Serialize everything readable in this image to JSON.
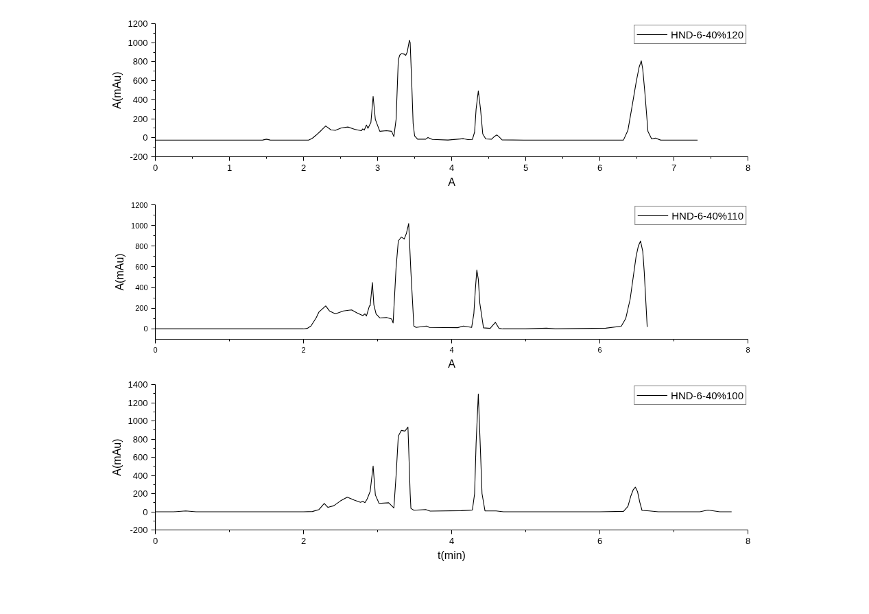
{
  "chart_data": [
    {
      "type": "line",
      "xlabel": "A",
      "ylabel": "A(mAu)",
      "xlim": [
        0,
        8
      ],
      "ylim": [
        -200,
        1200
      ],
      "xticks": [
        0,
        1,
        2,
        3,
        4,
        5,
        6,
        7,
        8
      ],
      "yticks": [
        -200,
        0,
        200,
        400,
        600,
        800,
        1000,
        1200
      ],
      "legend": "top right",
      "series": [
        {
          "name": "HND-6-40%120",
          "color": "#000000",
          "x": [
            0,
            0.5,
            1.0,
            1.45,
            1.5,
            1.55,
            2.0,
            2.07,
            2.12,
            2.17,
            2.24,
            2.3,
            2.37,
            2.43,
            2.51,
            2.6,
            2.69,
            2.78,
            2.8,
            2.82,
            2.85,
            2.87,
            2.91,
            2.94,
            2.97,
            3.03,
            3.12,
            3.19,
            3.22,
            3.25,
            3.28,
            3.3,
            3.32,
            3.36,
            3.38,
            3.4,
            3.43,
            3.44,
            3.46,
            3.48,
            3.5,
            3.54,
            3.65,
            3.68,
            3.74,
            3.95,
            4.16,
            4.22,
            4.28,
            4.31,
            4.33,
            4.36,
            4.39,
            4.42,
            4.46,
            4.54,
            4.58,
            4.61,
            4.64,
            4.68,
            5.0,
            5.5,
            6.0,
            6.32,
            6.38,
            6.43,
            6.49,
            6.53,
            6.56,
            6.58,
            6.61,
            6.65,
            6.7,
            6.75,
            6.82,
            7.0,
            7.32
          ],
          "values": [
            -25,
            -25,
            -25,
            -24,
            -15,
            -24,
            -25,
            -25,
            -5,
            27,
            78,
            124,
            83,
            78,
            103,
            113,
            89,
            74,
            93,
            80,
            134,
            99,
            161,
            435,
            192,
            68,
            74,
            68,
            12,
            192,
            820,
            870,
            884,
            880,
            866,
            900,
            1026,
            1000,
            600,
            150,
            20,
            -15,
            -15,
            2,
            -18,
            -24,
            -10,
            -20,
            -18,
            60,
            300,
            493,
            300,
            40,
            -12,
            -15,
            15,
            30,
            10,
            -22,
            -25,
            -25,
            -25,
            -24,
            80,
            304,
            580,
            740,
            809,
            720,
            462,
            67,
            -12,
            -4,
            -24,
            -25,
            -25
          ]
        }
      ]
    },
    {
      "type": "line",
      "xlabel": "A",
      "ylabel": "A(mAu)",
      "xlim": [
        0,
        8
      ],
      "ylim": [
        -100,
        1200
      ],
      "xticks": [
        0,
        2,
        4,
        6,
        8
      ],
      "yticks": [
        0,
        200,
        400,
        600,
        800,
        1000,
        1200
      ],
      "legend": "top right",
      "series": [
        {
          "name": "HND-6-40%110",
          "color": "#000000",
          "x": [
            0,
            1.0,
            2.0,
            2.05,
            2.1,
            2.17,
            2.21,
            2.3,
            2.35,
            2.43,
            2.54,
            2.65,
            2.72,
            2.8,
            2.83,
            2.85,
            2.89,
            2.9,
            2.93,
            2.95,
            2.98,
            3.03,
            3.12,
            3.19,
            3.21,
            3.25,
            3.28,
            3.32,
            3.36,
            3.39,
            3.42,
            3.45,
            3.49,
            3.52,
            3.66,
            3.7,
            4.08,
            4.16,
            4.27,
            4.3,
            4.32,
            4.34,
            4.36,
            4.38,
            4.43,
            4.52,
            4.59,
            4.64,
            4.69,
            5.0,
            5.28,
            5.4,
            6.08,
            6.29,
            6.35,
            6.41,
            6.49,
            6.52,
            6.55,
            6.58,
            6.6,
            6.64
          ],
          "values": [
            0,
            0,
            0,
            5,
            28,
            106,
            165,
            223,
            174,
            145,
            174,
            184,
            155,
            129,
            145,
            125,
            223,
            223,
            448,
            233,
            145,
            106,
            110,
            96,
            57,
            594,
            850,
            888,
            869,
            925,
            1019,
            551,
            28,
            14,
            28,
            14,
            12,
            28,
            14,
            150,
            380,
            569,
            480,
            250,
            10,
            5,
            64,
            5,
            0,
            0,
            7,
            0,
            7,
            26,
            100,
            288,
            700,
            800,
            850,
            750,
            551,
            20
          ]
        }
      ]
    },
    {
      "type": "line",
      "xlabel": "t(min)",
      "ylabel": "A(mAu)",
      "xlim": [
        0,
        8
      ],
      "ylim": [
        -200,
        1400
      ],
      "xticks": [
        0,
        2,
        4,
        6,
        8
      ],
      "yticks": [
        -200,
        0,
        200,
        400,
        600,
        800,
        1000,
        1200,
        1400
      ],
      "legend": "top right",
      "series": [
        {
          "name": "HND-6-40%100",
          "color": "#000000",
          "x": [
            0,
            0.25,
            0.41,
            0.55,
            1.0,
            2.0,
            2.12,
            2.21,
            2.28,
            2.33,
            2.41,
            2.5,
            2.59,
            2.68,
            2.77,
            2.8,
            2.83,
            2.86,
            2.9,
            2.94,
            2.97,
            3.02,
            3.15,
            3.22,
            3.25,
            3.28,
            3.32,
            3.37,
            3.41,
            3.42,
            3.44,
            3.45,
            3.49,
            3.65,
            3.71,
            4.13,
            4.28,
            4.31,
            4.33,
            4.36,
            4.39,
            4.41,
            4.45,
            4.6,
            4.7,
            5.0,
            6.0,
            6.32,
            6.38,
            6.42,
            6.45,
            6.48,
            6.51,
            6.54,
            6.57,
            6.67,
            6.79,
            7.0,
            7.35,
            7.46,
            7.62,
            7.78
          ],
          "values": [
            0,
            0,
            10,
            0,
            0,
            0,
            3,
            25,
            92,
            49,
            67,
            120,
            161,
            130,
            104,
            115,
            100,
            142,
            224,
            504,
            186,
            92,
            99,
            42,
            400,
            832,
            895,
            888,
            932,
            700,
            200,
            37,
            17,
            25,
            7,
            12,
            20,
            200,
            750,
            1295,
            650,
            200,
            10,
            10,
            0,
            0,
            0,
            5,
            60,
            176,
            240,
            271,
            220,
            105,
            15,
            10,
            0,
            0,
            0,
            19,
            0,
            0
          ]
        }
      ]
    }
  ]
}
